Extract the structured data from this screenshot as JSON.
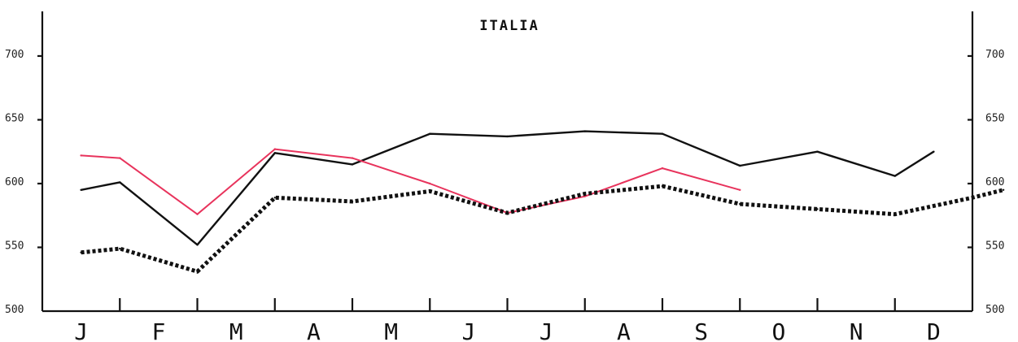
{
  "chart_data": {
    "type": "line",
    "title": "ITALIA",
    "categories": [
      "J",
      "F",
      "M",
      "A",
      "M",
      "J",
      "J",
      "A",
      "S",
      "O",
      "N",
      "D"
    ],
    "ylim": [
      500,
      735
    ],
    "yticks": [
      500,
      550,
      600,
      650,
      700
    ],
    "y_axes": "left and right",
    "grid": false,
    "legend": "none",
    "series": [
      {
        "style": "solid",
        "color": "#111111",
        "x": [
          0.5,
          1,
          2,
          3,
          4,
          5,
          6,
          7,
          8,
          9,
          10,
          11,
          11.5
        ],
        "values": [
          595,
          601,
          552,
          624,
          615,
          639,
          637,
          641,
          639,
          614,
          625,
          606,
          625
        ]
      },
      {
        "style": "solid",
        "color": "#e8335c",
        "x": [
          0.5,
          1,
          2,
          3,
          4,
          5,
          6,
          7,
          8,
          9
        ],
        "values": [
          622,
          620,
          576,
          627,
          620,
          600,
          577,
          590,
          612,
          595
        ]
      },
      {
        "style": "dotted",
        "color": "#111111",
        "x": [
          0.5,
          1,
          2,
          3,
          4,
          5,
          6,
          7,
          8,
          9,
          10,
          11,
          12,
          12.4
        ],
        "values": [
          546,
          549,
          531,
          589,
          586,
          594,
          577,
          592,
          598,
          584,
          580,
          576,
          589,
          595
        ]
      }
    ]
  }
}
